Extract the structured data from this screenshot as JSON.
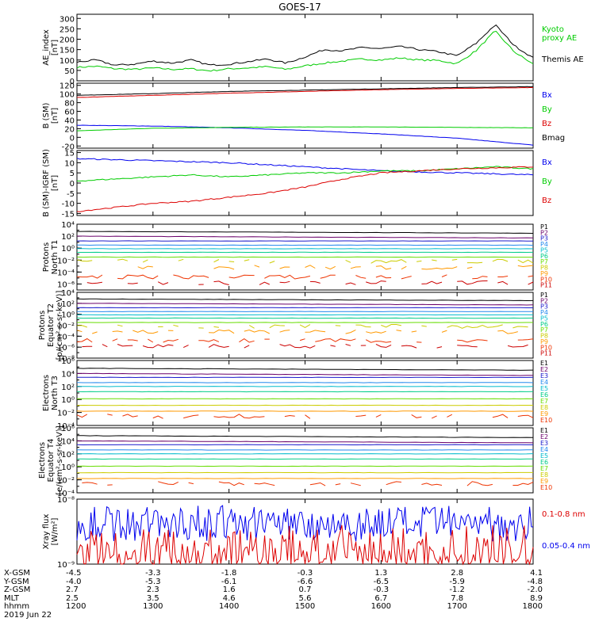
{
  "title": "GOES-17",
  "colors": {
    "black": "#000000",
    "green": "#00cc00",
    "blue": "#0000ee",
    "red": "#dd0000",
    "protons": [
      "#000000",
      "#6a006a",
      "#1a1acc",
      "#2288ee",
      "#00bbcc",
      "#00cc88",
      "#66dd00",
      "#cccc00",
      "#ff9900",
      "#ee3300",
      "#cc0000"
    ],
    "electrons": [
      "#000000",
      "#6a006a",
      "#1a1acc",
      "#2288ee",
      "#00bbcc",
      "#00cc88",
      "#66dd00",
      "#cccc00",
      "#ff9900",
      "#ee3300"
    ]
  },
  "chart_data": [
    {
      "type": "line",
      "ylabel": "AE_index\n[nT]",
      "ylim": [
        0,
        320
      ],
      "yticks": [
        0,
        50,
        100,
        150,
        200,
        250,
        300
      ],
      "yticklabels": [
        "0",
        "50",
        "100",
        "150",
        "200",
        "250",
        "300"
      ],
      "series": [
        {
          "name": "Kyoto\nproxy AE",
          "color": "green",
          "x": [
            1200,
            1215,
            1230,
            1245,
            1300,
            1315,
            1330,
            1345,
            1400,
            1415,
            1430,
            1445,
            1500,
            1515,
            1530,
            1545,
            1600,
            1615,
            1630,
            1645,
            1700,
            1715,
            1730,
            1745,
            1800
          ],
          "y": [
            65,
            70,
            58,
            55,
            62,
            55,
            58,
            48,
            58,
            62,
            68,
            55,
            72,
            85,
            95,
            105,
            100,
            110,
            100,
            98,
            82,
            145,
            240,
            140,
            80
          ]
        },
        {
          "name": "Themis AE",
          "color": "black",
          "x": [
            1200,
            1215,
            1230,
            1245,
            1300,
            1315,
            1330,
            1345,
            1400,
            1415,
            1430,
            1445,
            1500,
            1515,
            1530,
            1545,
            1600,
            1615,
            1630,
            1645,
            1700,
            1715,
            1730,
            1745,
            1800
          ],
          "y": [
            90,
            100,
            75,
            80,
            95,
            85,
            100,
            75,
            80,
            92,
            105,
            85,
            115,
            150,
            145,
            160,
            155,
            165,
            150,
            140,
            120,
            180,
            270,
            170,
            110
          ]
        }
      ],
      "legend_placement": "right"
    },
    {
      "type": "line",
      "ylabel": "B (SM)\n[nT]",
      "ylim": [
        -25,
        125
      ],
      "yticks": [
        -20,
        0,
        20,
        40,
        60,
        80,
        100,
        120
      ],
      "yticklabels": [
        "-20",
        "0",
        "20",
        "40",
        "60",
        "80",
        "100",
        "120"
      ],
      "series": [
        {
          "name": "Bx",
          "color": "blue",
          "x": [
            1200,
            1300,
            1400,
            1500,
            1600,
            1700,
            1800
          ],
          "y": [
            28,
            26,
            22,
            16,
            8,
            -2,
            -18
          ]
        },
        {
          "name": "By",
          "color": "green",
          "x": [
            1200,
            1300,
            1400,
            1500,
            1600,
            1700,
            1800
          ],
          "y": [
            15,
            21,
            23,
            24,
            24,
            23,
            22
          ]
        },
        {
          "name": "Bz",
          "color": "red",
          "x": [
            1200,
            1300,
            1400,
            1500,
            1600,
            1700,
            1800
          ],
          "y": [
            92,
            97,
            102,
            106,
            110,
            113,
            115
          ]
        },
        {
          "name": "Bmag",
          "color": "black",
          "x": [
            1200,
            1300,
            1400,
            1500,
            1600,
            1700,
            1800
          ],
          "y": [
            97,
            101,
            106,
            109,
            112,
            115,
            117
          ]
        }
      ],
      "legend_placement": "right"
    },
    {
      "type": "line",
      "ylabel": "B (SM)-IGRF (SM)\n[nT]",
      "ylim": [
        -16,
        16
      ],
      "yticks": [
        -15,
        -10,
        -5,
        0,
        5,
        10,
        15
      ],
      "yticklabels": [
        "-15",
        "-10",
        "-5",
        "0",
        "5",
        "10",
        "15"
      ],
      "series": [
        {
          "name": "Bx",
          "color": "blue",
          "x": [
            1200,
            1230,
            1300,
            1330,
            1400,
            1430,
            1500,
            1530,
            1600,
            1630,
            1700,
            1730,
            1800
          ],
          "y": [
            12,
            11.5,
            11,
            10.5,
            10,
            9,
            8,
            7,
            6,
            5.5,
            5,
            4.5,
            4
          ]
        },
        {
          "name": "By",
          "color": "green",
          "x": [
            1200,
            1230,
            1300,
            1330,
            1400,
            1430,
            1500,
            1530,
            1600,
            1630,
            1700,
            1730,
            1800
          ],
          "y": [
            1,
            2,
            3,
            4,
            3,
            4,
            5,
            5,
            6,
            6,
            7,
            8,
            7
          ]
        },
        {
          "name": "Bz",
          "color": "red",
          "x": [
            1200,
            1230,
            1300,
            1330,
            1400,
            1430,
            1500,
            1530,
            1600,
            1630,
            1700,
            1730,
            1800
          ],
          "y": [
            -14,
            -12,
            -10,
            -9,
            -7,
            -5,
            -2,
            2,
            5,
            6,
            7,
            7.5,
            8
          ]
        }
      ],
      "legend_placement": "right"
    },
    {
      "type": "line",
      "log_scale": true,
      "ylabel": "Protons\nNorth T1",
      "ylim_exp": [
        -7,
        4
      ],
      "ytick_exps": [
        4,
        2,
        0,
        -2,
        -4,
        -6
      ],
      "yticklabels": [
        "10⁴",
        "10²",
        "10⁰",
        "10⁻²",
        "10⁻⁴",
        "10⁻⁶"
      ],
      "legend": [
        "P1",
        "P2",
        "P3",
        "P4",
        "P5",
        "P6",
        "P7",
        "P8",
        "P9",
        "P10",
        "P11"
      ],
      "levels_exp": [
        2.8,
        2.0,
        1.2,
        0.5,
        -0.1,
        -0.7,
        -1.5,
        -2.2,
        -3.2,
        -4.8,
        -5.8
      ],
      "legend_placement": "right"
    },
    {
      "type": "line",
      "log_scale": true,
      "ylabel": "Protons\nEquator T2\n[p/(cm²-s-sr-keV)]",
      "ylim_exp": [
        -8,
        4
      ],
      "ytick_exps": [
        4,
        2,
        0,
        -2,
        -4,
        -6,
        -8
      ],
      "yticklabels": [
        "10⁴",
        "10²",
        "10⁰",
        "10⁻²",
        "10⁻⁴",
        "10⁻⁶",
        "10⁻⁸"
      ],
      "legend": [
        "P1",
        "P2",
        "P3",
        "P4",
        "P5",
        "P6",
        "P7",
        "P8",
        "P9",
        "P10",
        "P11"
      ],
      "levels_exp": [
        2.8,
        2.0,
        1.2,
        0.5,
        -0.1,
        -0.7,
        -1.5,
        -2.2,
        -3.2,
        -4.8,
        -5.8
      ],
      "legend_placement": "right"
    },
    {
      "type": "line",
      "log_scale": true,
      "ylabel": "Electrons\nNorth T3",
      "ylim_exp": [
        -4,
        6
      ],
      "ytick_exps": [
        6,
        4,
        2,
        0,
        -2,
        -4
      ],
      "yticklabels": [
        "10⁶",
        "10⁴",
        "10²",
        "10⁰",
        "10⁻²",
        "10⁻⁴"
      ],
      "legend": [
        "E1",
        "E2",
        "E3",
        "E4",
        "E5",
        "E6",
        "E7",
        "E8",
        "E9",
        "E10"
      ],
      "levels_exp": [
        4.8,
        4.0,
        3.4,
        2.6,
        2.0,
        1.2,
        0.1,
        -0.9,
        -1.8,
        -2.6
      ],
      "legend_placement": "right"
    },
    {
      "type": "line",
      "log_scale": true,
      "ylabel": "Electrons\nEquator T4\n[e/(cm²-s-sr-keV)]",
      "ylim_exp": [
        -4,
        6
      ],
      "ytick_exps": [
        6,
        4,
        2,
        0,
        -2,
        -4
      ],
      "yticklabels": [
        "10⁶",
        "10⁴",
        "10²",
        "10⁰",
        "10⁻²",
        "10⁻⁴"
      ],
      "legend": [
        "E1",
        "E2",
        "E3",
        "E4",
        "E5",
        "E6",
        "E7",
        "E8",
        "E9",
        "E10"
      ],
      "levels_exp": [
        4.8,
        4.0,
        3.4,
        2.6,
        2.0,
        1.2,
        0.1,
        -0.9,
        -1.8,
        -2.6
      ],
      "legend_placement": "right"
    },
    {
      "type": "line",
      "log_scale": true,
      "ylabel": "Xray flux\n[W/m²]",
      "ylim_exp": [
        -9,
        -8
      ],
      "ytick_exps": [
        -8,
        -9
      ],
      "yticklabels": [
        "10⁻⁸",
        "10⁻⁹"
      ],
      "series": [
        {
          "name": "0.1-0.8 nm",
          "color": "red"
        },
        {
          "name": "0.05-0.4 nm",
          "color": "blue"
        }
      ],
      "legend_placement": "right"
    }
  ],
  "x_axis": {
    "xlim": [
      1200,
      1800
    ],
    "row_labels": [
      "X-GSM",
      "Y-GSM",
      "Z-GSM",
      "MLT",
      "hhmm",
      "2019 Jun 22"
    ],
    "ticks": [
      {
        "x": 1200,
        "vals": [
          "-4.5",
          "-4.0",
          "2.7",
          "2.5",
          "1200"
        ]
      },
      {
        "x": 1300,
        "vals": [
          "-3.3",
          "-5.3",
          "2.3",
          "3.5",
          "1300"
        ]
      },
      {
        "x": 1400,
        "vals": [
          "-1.8",
          "-6.1",
          "1.6",
          "4.6",
          "1400"
        ]
      },
      {
        "x": 1500,
        "vals": [
          "-0.3",
          "-6.6",
          "0.7",
          "5.6",
          "1500"
        ]
      },
      {
        "x": 1600,
        "vals": [
          "1.3",
          "-6.5",
          "-0.3",
          "6.7",
          "1600"
        ]
      },
      {
        "x": 1700,
        "vals": [
          "2.8",
          "-5.9",
          "-1.2",
          "7.8",
          "1700"
        ]
      },
      {
        "x": 1800,
        "vals": [
          "4.1",
          "-4.8",
          "-2.0",
          "8.9",
          "1800"
        ]
      }
    ]
  }
}
